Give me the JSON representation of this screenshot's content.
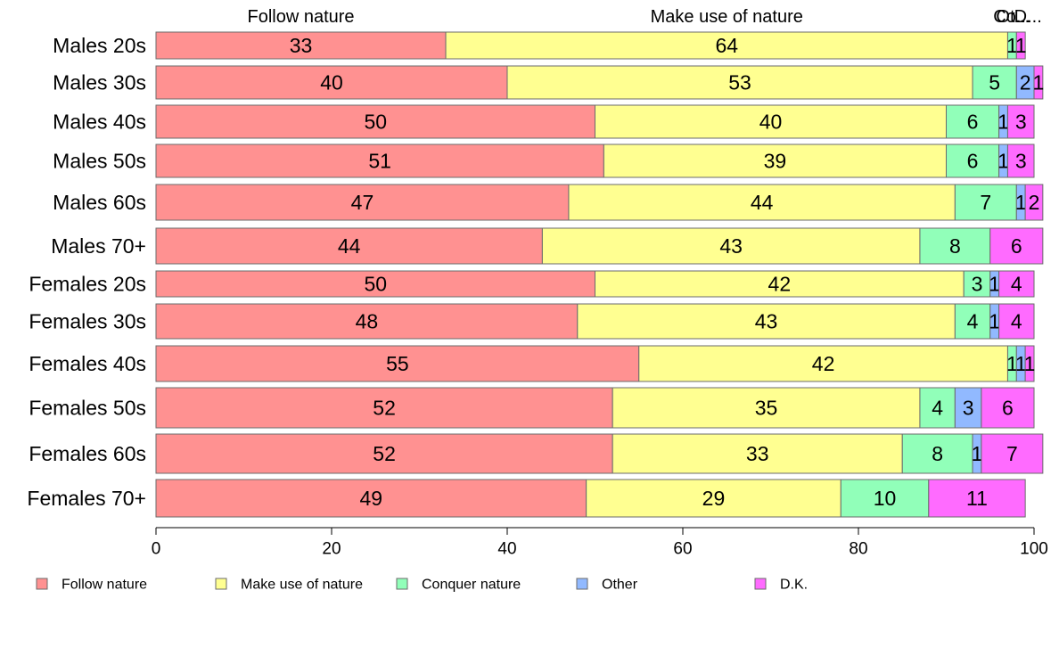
{
  "chart_data": {
    "type": "bar",
    "orientation": "horizontal",
    "stacked": true,
    "categories": [
      "Males 20s",
      "Males 30s",
      "Males 40s",
      "Males 50s",
      "Males 60s",
      "Males 70+",
      "Females 20s",
      "Females 30s",
      "Females 40s",
      "Females 50s",
      "Females 60s",
      "Females 70+"
    ],
    "series": [
      {
        "name": "Follow nature",
        "color": "#ff9191",
        "values": [
          33,
          40,
          50,
          51,
          47,
          44,
          50,
          48,
          55,
          52,
          52,
          49
        ]
      },
      {
        "name": "Make use of nature",
        "color": "#ffff91",
        "values": [
          64,
          53,
          40,
          39,
          44,
          43,
          42,
          43,
          42,
          35,
          33,
          29
        ]
      },
      {
        "name": "Conquer nature",
        "color": "#91ffb9",
        "values": [
          1,
          5,
          6,
          6,
          7,
          8,
          3,
          4,
          1,
          4,
          8,
          10
        ]
      },
      {
        "name": "Other",
        "color": "#91b9ff",
        "values": [
          0,
          2,
          1,
          1,
          1,
          0,
          1,
          1,
          1,
          3,
          1,
          0
        ]
      },
      {
        "name": "D.K.",
        "color": "#ff6bff",
        "values": [
          1,
          1,
          3,
          3,
          2,
          6,
          4,
          4,
          1,
          6,
          7,
          11
        ]
      }
    ],
    "top_labels": [
      "Follow nature",
      "Make use of nature",
      "Co...",
      "Ot...",
      "D..."
    ],
    "xlim": [
      0,
      100
    ],
    "xticks": [
      0,
      20,
      40,
      60,
      80,
      100
    ],
    "grid": false,
    "legend_position": "bottom"
  }
}
